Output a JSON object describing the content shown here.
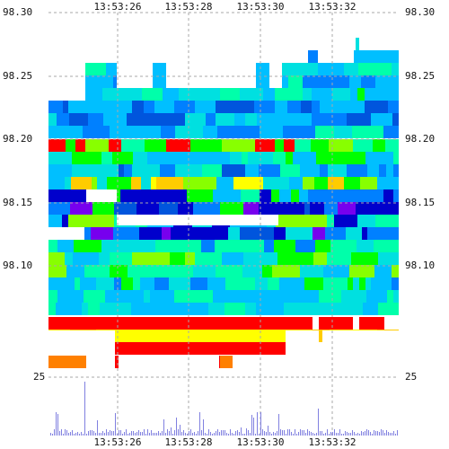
{
  "chart_data": {
    "type": "heatmap",
    "title": "",
    "xlabel": "",
    "ylabel": "",
    "x_ticks": [
      "13:53:26",
      "13:53:28",
      "13:53:30",
      "13:53:32"
    ],
    "y_ticks": [
      "98.30",
      "98.25",
      "98.20",
      "98.15",
      "98.10"
    ],
    "ylim": [
      98.06,
      98.3
    ],
    "volume_axis_label": "25",
    "grid": true,
    "colors": {
      "background": "#ffffff",
      "grid": "#aaaaaa",
      "volume_bars": "#8080e0",
      "heat_scale": [
        "#0055dd",
        "#0080ff",
        "#00bfff",
        "#00e0e0",
        "#00ffaa",
        "#00ff00",
        "#88ff00",
        "#ffff00",
        "#ffcc00",
        "#ff8000",
        "#ff0000",
        "#0000cc",
        "#7700ee"
      ]
    }
  }
}
